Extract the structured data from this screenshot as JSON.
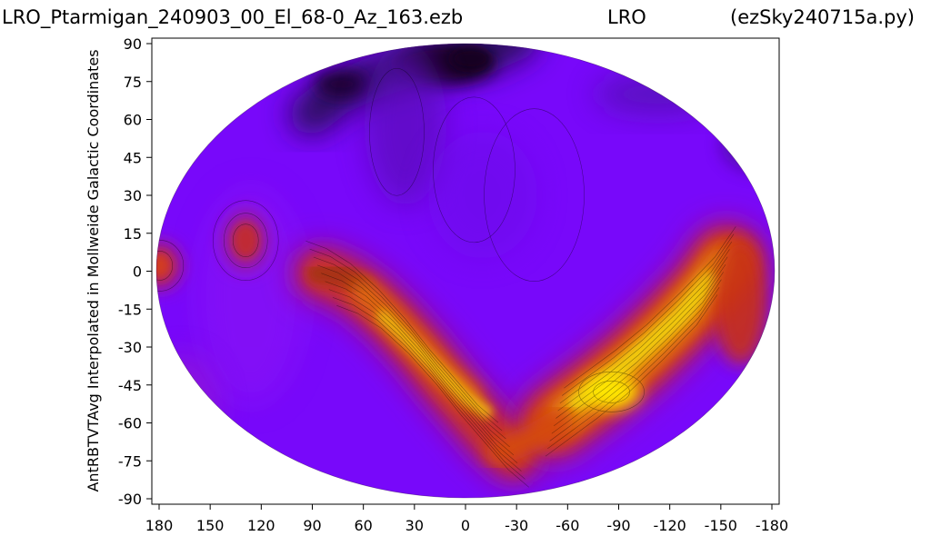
{
  "header": {
    "title_left": "LRO_Ptarmigan_240903_00_El_68-0_Az_163.ezb",
    "title_center": "LRO",
    "title_right": "(ezSky240715a.py)"
  },
  "chart_data": {
    "type": "heatmap",
    "title": "LRO_Ptarmigan_240903_00_El_68-0_Az_163.ezb",
    "xlabel": "",
    "ylabel": "AntRBTVTAvg Interpolated in Mollweide Galactic Coordinates",
    "x_ticks": [
      "180",
      "150",
      "120",
      "90",
      "60",
      "30",
      "0",
      "-30",
      "-60",
      "-90",
      "-120",
      "-150",
      "-180"
    ],
    "x_tick_values": [
      180,
      150,
      120,
      90,
      60,
      30,
      0,
      -30,
      -60,
      -90,
      -120,
      -150,
      -180
    ],
    "y_ticks": [
      "90",
      "75",
      "60",
      "45",
      "30",
      "15",
      "0",
      "-15",
      "-30",
      "-45",
      "-60",
      "-75",
      "-90"
    ],
    "y_tick_values": [
      90,
      75,
      60,
      45,
      30,
      15,
      0,
      -15,
      -30,
      -45,
      -60,
      -75,
      -90
    ],
    "xlim": [
      180,
      -180
    ],
    "ylim": [
      -90,
      90
    ],
    "projection": "mollweide",
    "colormap": "gnuplot",
    "contours": true,
    "grid": false,
    "features": [
      {
        "name": "galactic-plane-ridge",
        "path": [
          [
            85,
            0
          ],
          [
            60,
            -10
          ],
          [
            30,
            -30
          ],
          [
            0,
            -55
          ],
          [
            -30,
            -70
          ],
          [
            -50,
            -58
          ],
          [
            -80,
            -45
          ],
          [
            -110,
            -30
          ],
          [
            -150,
            0
          ]
        ],
        "level": 0.85
      },
      {
        "name": "hot-spot-east",
        "lon": -80,
        "lat": -50,
        "level": 1.0
      },
      {
        "name": "blob-left",
        "lon": 128,
        "lat": 12,
        "level": 0.55
      },
      {
        "name": "edge-blob",
        "lon": 178,
        "lat": 2,
        "level": 0.5
      }
    ]
  }
}
